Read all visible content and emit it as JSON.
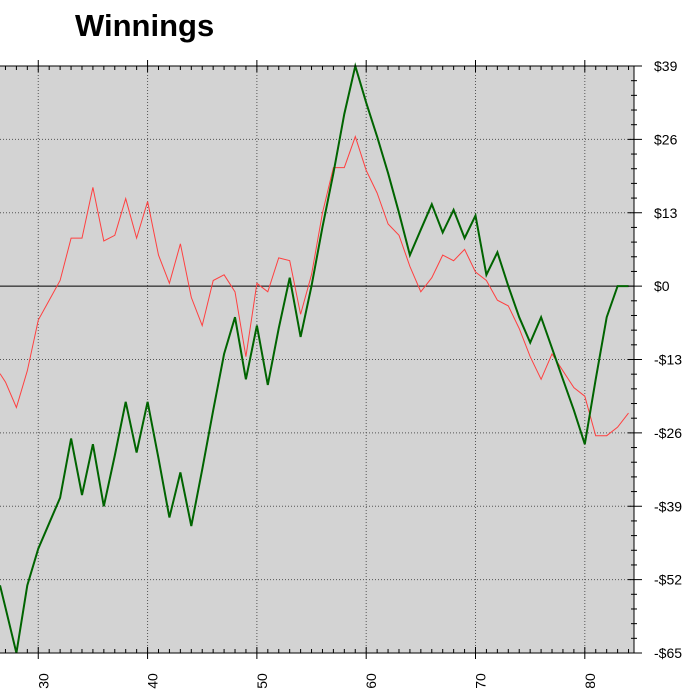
{
  "chart_data": {
    "type": "line",
    "title": "Winnings",
    "xlabel": "",
    "ylabel": "",
    "xlim": [
      26.5,
      84.5
    ],
    "ylim": [
      -65,
      39
    ],
    "x_ticks": [
      30,
      40,
      50,
      60,
      70,
      80
    ],
    "x_tick_labels": [
      "30",
      "40",
      "50",
      "60",
      "70",
      "80"
    ],
    "y_ticks": [
      39,
      26,
      13,
      0,
      -13,
      -26,
      -39,
      -52,
      -65
    ],
    "y_tick_labels": [
      "$39",
      "$26",
      "$13",
      "$0",
      "-$13",
      "-$26",
      "-$39",
      "-$52",
      "-$65"
    ],
    "grid": true,
    "zero_line": true,
    "background": "#d3d3d3",
    "series": [
      {
        "color": "#ff4040",
        "width": 1,
        "x": [
          26.5,
          27,
          28,
          29,
          30,
          31,
          32,
          33,
          34,
          35,
          36,
          37,
          38,
          39,
          40,
          41,
          42,
          43,
          44,
          45,
          46,
          47,
          48,
          49,
          50,
          51,
          52,
          53,
          54,
          55,
          56,
          57,
          58,
          59,
          60,
          61,
          62,
          63,
          64,
          65,
          66,
          67,
          68,
          69,
          70,
          71,
          72,
          73,
          74,
          75,
          76,
          77,
          78,
          79,
          80,
          81,
          82,
          83,
          84
        ],
        "y": [
          -15.5,
          -17,
          -21.5,
          -15,
          -6,
          -2.5,
          1,
          8.5,
          8.5,
          17.5,
          8,
          9,
          15.5,
          8.5,
          15,
          5.5,
          0.5,
          7.5,
          -2,
          -7,
          1,
          2,
          -1,
          -12.5,
          0.5,
          -1,
          5,
          4.5,
          -5,
          2,
          13,
          21,
          21,
          26.5,
          20.5,
          16.5,
          11,
          9,
          3.5,
          -1,
          1.5,
          5.5,
          4.5,
          6.5,
          2.5,
          1,
          -2.5,
          -3.5,
          -7.5,
          -12.5,
          -16.5,
          -12,
          -15,
          -18,
          -19.5,
          -26.5,
          -26.5,
          -25,
          -22.5
        ]
      },
      {
        "color": "#006400",
        "width": 2,
        "x": [
          26.5,
          27,
          28,
          29,
          30,
          31,
          32,
          33,
          34,
          35,
          36,
          37,
          38,
          39,
          40,
          41,
          42,
          43,
          44,
          45,
          46,
          47,
          48,
          49,
          50,
          51,
          52,
          53,
          54,
          55,
          56,
          57,
          58,
          59,
          60,
          61,
          62,
          63,
          64,
          65,
          66,
          67,
          68,
          69,
          70,
          71,
          72,
          73,
          74,
          75,
          76,
          77,
          78,
          79,
          80,
          81,
          82,
          83,
          84
        ],
        "y": [
          -53,
          -57,
          -65,
          -53,
          -46.5,
          -42,
          -37.5,
          -27,
          -37,
          -28,
          -39,
          -30,
          -20.5,
          -29.5,
          -20.5,
          -30.5,
          -41,
          -33,
          -42.5,
          -32.5,
          -22,
          -12,
          -5.5,
          -16.5,
          -7,
          -17.5,
          -7.5,
          1.5,
          -9,
          0,
          10.5,
          20,
          30.5,
          39,
          32.5,
          26.5,
          20,
          13,
          5.5,
          10,
          14.5,
          9.5,
          13.5,
          8.5,
          12.5,
          2,
          6,
          0,
          -5.5,
          -10,
          -5.5,
          -11,
          -16.5,
          -22,
          -28,
          -16.5,
          -5.5,
          0,
          0
        ]
      }
    ]
  }
}
